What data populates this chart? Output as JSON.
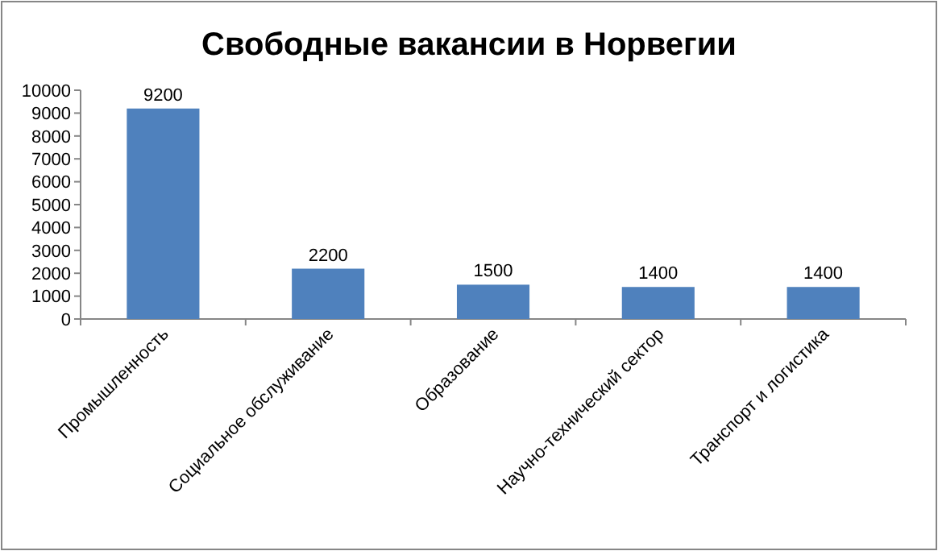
{
  "chart_data": {
    "type": "bar",
    "title": "Свободные вакансии в Норвегии",
    "categories": [
      "Промышленность",
      "Социальное обслуживание",
      "Образование",
      "Научно-технический сектор",
      "Транспорт и логистика"
    ],
    "values": [
      9200,
      2200,
      1500,
      1400,
      1400
    ],
    "color": "#4f81bd",
    "ylim": [
      0,
      10000
    ],
    "yticks": [
      0,
      1000,
      2000,
      3000,
      4000,
      5000,
      6000,
      7000,
      8000,
      9000,
      10000
    ],
    "data_labels": true
  }
}
